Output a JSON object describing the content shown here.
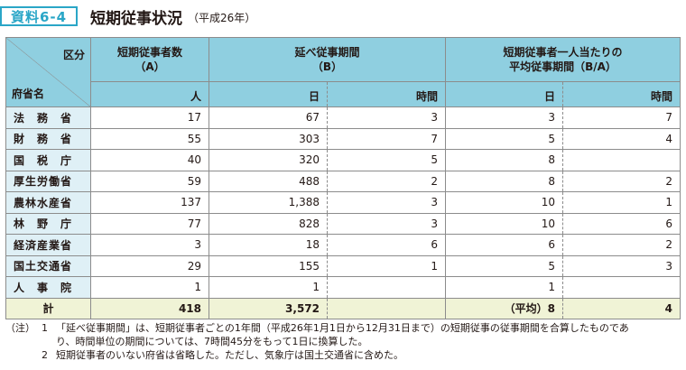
{
  "header": {
    "badge": "資料6-4",
    "title": "短期従事状況",
    "subtitle": "（平成26年）"
  },
  "table": {
    "corner_top": "区分",
    "corner_bottom": "府省名",
    "col_a": {
      "line1": "短期従事者数",
      "line2": "（A）",
      "unit": "人"
    },
    "col_b": {
      "line1": "延べ従事期間",
      "line2": "（B）",
      "unit_day": "日",
      "unit_hour": "時間"
    },
    "col_c": {
      "line1": "短期従事者一人当たりの",
      "line2": "平均従事期間（B/A）",
      "unit_day": "日",
      "unit_hour": "時間"
    },
    "rows": [
      {
        "name": "法務省",
        "a": "17",
        "b_day": "67",
        "b_hour": "3",
        "c_day": "3",
        "c_hour": "7"
      },
      {
        "name": "財務省",
        "a": "55",
        "b_day": "303",
        "b_hour": "7",
        "c_day": "5",
        "c_hour": "4"
      },
      {
        "name": "国税庁",
        "a": "40",
        "b_day": "320",
        "b_hour": "5",
        "c_day": "8",
        "c_hour": ""
      },
      {
        "name": "厚生労働省",
        "a": "59",
        "b_day": "488",
        "b_hour": "2",
        "c_day": "8",
        "c_hour": "2"
      },
      {
        "name": "農林水産省",
        "a": "137",
        "b_day": "1,388",
        "b_hour": "3",
        "c_day": "10",
        "c_hour": "1"
      },
      {
        "name": "林野庁",
        "a": "77",
        "b_day": "828",
        "b_hour": "3",
        "c_day": "10",
        "c_hour": "6"
      },
      {
        "name": "経済産業省",
        "a": "3",
        "b_day": "18",
        "b_hour": "6",
        "c_day": "6",
        "c_hour": "2"
      },
      {
        "name": "国土交通省",
        "a": "29",
        "b_day": "155",
        "b_hour": "1",
        "c_day": "5",
        "c_hour": "3"
      },
      {
        "name": "人事院",
        "a": "1",
        "b_day": "1",
        "b_hour": "",
        "c_day": "1",
        "c_hour": ""
      }
    ],
    "total": {
      "name": "計",
      "a": "418",
      "b_day": "3,572",
      "b_hour": "",
      "c_day": "（平均）8",
      "c_hour": "4"
    }
  },
  "notes": {
    "label": "（注）",
    "n1_num": "1",
    "n1_line1": "「延べ従事期間」は、短期従事者ごとの1年間（平成26年1月1日から12月31日まで）の短期従事の従事期間を合算したものであ",
    "n1_line2": "り、時間単位の期間については、7時間45分をもって1日に換算した。",
    "n2_num": "2",
    "n2_line1": "短期従事者のいない府省は省略した。ただし、気象庁は国土交通省に含めた。"
  }
}
